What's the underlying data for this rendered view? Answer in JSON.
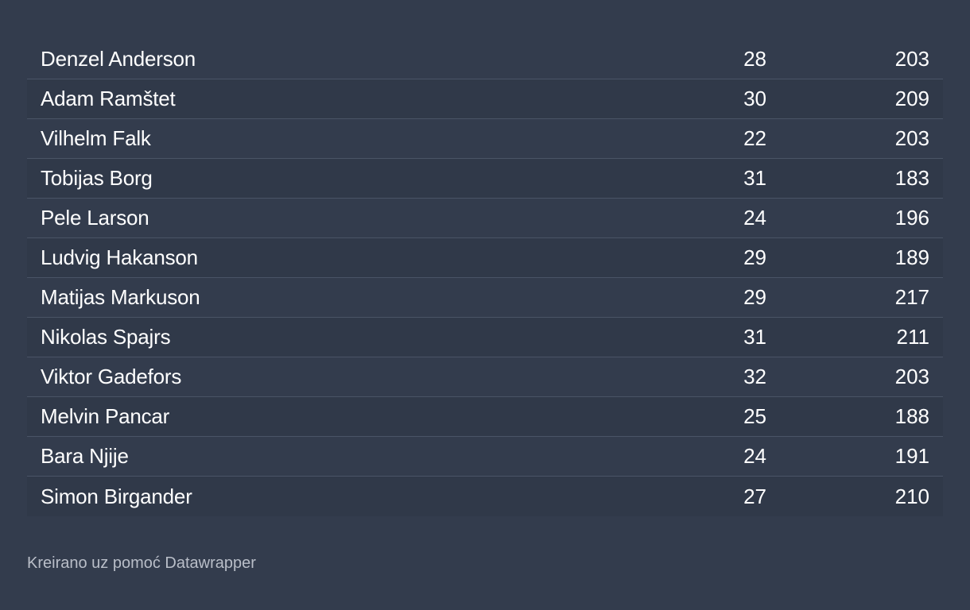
{
  "chart_data": {
    "type": "table",
    "rows": [
      {
        "name": "Denzel Anderson",
        "age": "28",
        "height": "203"
      },
      {
        "name": "Adam Ramštet",
        "age": "30",
        "height": "209"
      },
      {
        "name": "Vilhelm Falk",
        "age": "22",
        "height": "203"
      },
      {
        "name": "Tobijas Borg",
        "age": "31",
        "height": "183"
      },
      {
        "name": "Pele Larson",
        "age": "24",
        "height": "196"
      },
      {
        "name": "Ludvig Hakanson",
        "age": "29",
        "height": "189"
      },
      {
        "name": "Matijas Markuson",
        "age": "29",
        "height": "217"
      },
      {
        "name": "Nikolas Spajrs",
        "age": "31",
        "height": "211"
      },
      {
        "name": "Viktor Gadefors",
        "age": "32",
        "height": "203"
      },
      {
        "name": "Melvin Pancar",
        "age": "25",
        "height": "188"
      },
      {
        "name": "Bara Njije",
        "age": "24",
        "height": "191"
      },
      {
        "name": "Simon Birgander",
        "age": "27",
        "height": "210"
      }
    ]
  },
  "footer": {
    "credit": "Kreirano uz pomoć Datawrapper"
  },
  "colors": {
    "background": "#333c4d",
    "text": "#ffffff",
    "footer_text": "#b9bec8",
    "row_divider": "#4a5466"
  }
}
